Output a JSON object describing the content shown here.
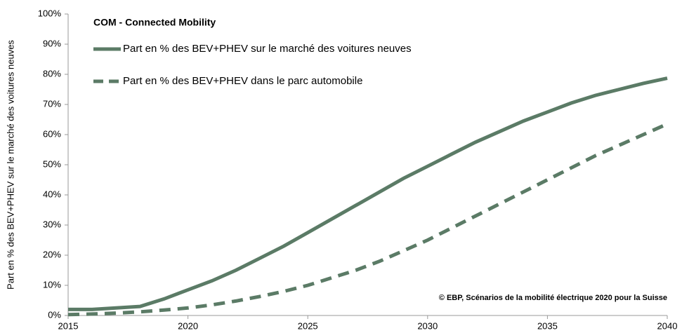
{
  "chart_data": {
    "type": "line",
    "title": "COM - Connected Mobility",
    "ylabel": "Part en % des BEV+PHEV sur le marché des voitures neuves",
    "annotation": "© EBP, Scénarios de la mobilité électrique 2020 pour la Suisse",
    "x": [
      2015,
      2016,
      2017,
      2018,
      2019,
      2020,
      2021,
      2022,
      2023,
      2024,
      2025,
      2026,
      2027,
      2028,
      2029,
      2030,
      2031,
      2032,
      2033,
      2034,
      2035,
      2036,
      2037,
      2038,
      2039,
      2040
    ],
    "series": [
      {
        "name": "Part en % des BEV+PHEV sur le marché des voitures neuves",
        "color": "#5b7b66",
        "style": "solid",
        "values": [
          2,
          2,
          2.5,
          3,
          5.5,
          8.5,
          11.5,
          15,
          19,
          23,
          27.5,
          32,
          36.5,
          41,
          45.5,
          49.5,
          53.5,
          57.5,
          61,
          64.5,
          67.5,
          70.5,
          73,
          75,
          77,
          78.7
        ]
      },
      {
        "name": "Part en % des BEV+PHEV dans le parc automobile",
        "color": "#5b7b66",
        "style": "dashed",
        "values": [
          0.3,
          0.5,
          0.8,
          1.2,
          1.8,
          2.5,
          3.5,
          4.8,
          6.3,
          8,
          10,
          12.5,
          15,
          18,
          21.5,
          25,
          29,
          33,
          37,
          41,
          45,
          49,
          53,
          56.5,
          60,
          63.5
        ]
      }
    ],
    "xlim": [
      2015,
      2040
    ],
    "xticks": [
      2015,
      2020,
      2025,
      2030,
      2035,
      2040
    ],
    "ylim": [
      0,
      100
    ],
    "yticks": [
      {
        "value": 0,
        "label": "0%"
      },
      {
        "value": 10,
        "label": "10%"
      },
      {
        "value": 20,
        "label": "20%"
      },
      {
        "value": 30,
        "label": "30%"
      },
      {
        "value": 40,
        "label": "40%"
      },
      {
        "value": 50,
        "label": "50%"
      },
      {
        "value": 60,
        "label": "60%"
      },
      {
        "value": 70,
        "label": "70%"
      },
      {
        "value": 80,
        "label": "80%"
      },
      {
        "value": 90,
        "label": "90%"
      },
      {
        "value": 100,
        "label": "100%"
      }
    ],
    "grid": false
  }
}
